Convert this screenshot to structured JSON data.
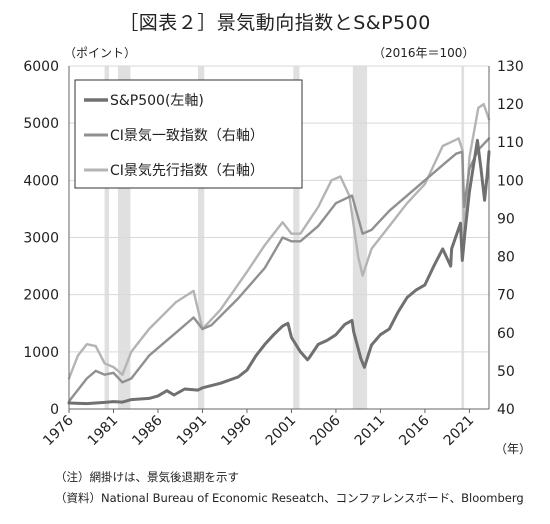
{
  "chart_data": {
    "type": "line",
    "title": "［図表２］景気動向指数とS&P500",
    "left_unit": "（ポイント）",
    "right_unit": "（2016年＝100）",
    "xlabel_unit": "（年）",
    "x_ticks": [
      "1976",
      "1981",
      "1986",
      "1991",
      "1996",
      "2001",
      "2006",
      "2011",
      "2016",
      "2021"
    ],
    "y_left": {
      "min": 0,
      "max": 6000,
      "ticks": [
        "0",
        "1000",
        "2000",
        "3000",
        "4000",
        "5000",
        "6000"
      ]
    },
    "y_right": {
      "min": 40,
      "max": 130,
      "ticks": [
        "40",
        "50",
        "60",
        "70",
        "80",
        "90",
        "100",
        "110",
        "120",
        "130"
      ]
    },
    "x_range": [
      1976,
      2023.2
    ],
    "recessions": [
      [
        1980.0,
        1980.5
      ],
      [
        1981.5,
        1982.9
      ],
      [
        1990.5,
        1991.2
      ],
      [
        2001.2,
        2001.9
      ],
      [
        2007.9,
        2009.5
      ],
      [
        2020.1,
        2020.4
      ]
    ],
    "legend": {
      "position": "top-left"
    },
    "series": [
      {
        "name": "S&P500(左軸)",
        "axis": "left",
        "color": "#707070",
        "width": 3,
        "points": [
          [
            1976,
            105
          ],
          [
            1978,
            95
          ],
          [
            1980,
            115
          ],
          [
            1981,
            130
          ],
          [
            1982,
            120
          ],
          [
            1983,
            165
          ],
          [
            1985,
            185
          ],
          [
            1986,
            230
          ],
          [
            1987,
            320
          ],
          [
            1987.8,
            245
          ],
          [
            1989,
            350
          ],
          [
            1990.5,
            330
          ],
          [
            1991,
            370
          ],
          [
            1993,
            450
          ],
          [
            1995,
            560
          ],
          [
            1996,
            680
          ],
          [
            1997,
            930
          ],
          [
            1998,
            1130
          ],
          [
            1999,
            1300
          ],
          [
            2000,
            1450
          ],
          [
            2000.6,
            1500
          ],
          [
            2001,
            1250
          ],
          [
            2002,
            1000
          ],
          [
            2002.8,
            860
          ],
          [
            2003,
            900
          ],
          [
            2004,
            1130
          ],
          [
            2005,
            1200
          ],
          [
            2006,
            1300
          ],
          [
            2007,
            1480
          ],
          [
            2007.8,
            1550
          ],
          [
            2008,
            1350
          ],
          [
            2008.8,
            880
          ],
          [
            2009.2,
            730
          ],
          [
            2010,
            1120
          ],
          [
            2011,
            1300
          ],
          [
            2012,
            1400
          ],
          [
            2013,
            1700
          ],
          [
            2014,
            1950
          ],
          [
            2015,
            2080
          ],
          [
            2016,
            2170
          ],
          [
            2017,
            2500
          ],
          [
            2018,
            2800
          ],
          [
            2018.9,
            2500
          ],
          [
            2019,
            2800
          ],
          [
            2020,
            3250
          ],
          [
            2020.2,
            2600
          ],
          [
            2020.5,
            3100
          ],
          [
            2021,
            3800
          ],
          [
            2021.9,
            4700
          ],
          [
            2022.3,
            4200
          ],
          [
            2022.7,
            3650
          ],
          [
            2023,
            4100
          ],
          [
            2023.2,
            4500
          ]
        ]
      },
      {
        "name": "CI景気一致指数（右軸）",
        "axis": "right",
        "color": "#909090",
        "width": 2.4,
        "points": [
          [
            1976,
            42
          ],
          [
            1978,
            48
          ],
          [
            1979,
            50
          ],
          [
            1980,
            49
          ],
          [
            1981,
            49.5
          ],
          [
            1982,
            47
          ],
          [
            1983,
            48
          ],
          [
            1985,
            54
          ],
          [
            1988,
            60
          ],
          [
            1990,
            64
          ],
          [
            1991,
            61
          ],
          [
            1992,
            62
          ],
          [
            1995,
            69
          ],
          [
            1998,
            77
          ],
          [
            2000,
            85
          ],
          [
            2001,
            84
          ],
          [
            2002,
            84
          ],
          [
            2004,
            88
          ],
          [
            2006,
            94
          ],
          [
            2007.8,
            96
          ],
          [
            2009,
            86
          ],
          [
            2010,
            87
          ],
          [
            2012,
            92
          ],
          [
            2014,
            96
          ],
          [
            2016,
            100
          ],
          [
            2018,
            104
          ],
          [
            2019.5,
            107
          ],
          [
            2020.2,
            107.5
          ],
          [
            2020.4,
            93
          ],
          [
            2021,
            103
          ],
          [
            2022,
            108
          ],
          [
            2023.2,
            111
          ]
        ]
      },
      {
        "name": "CI景気先行指数（右軸）",
        "axis": "right",
        "color": "#b4b4b4",
        "width": 2.4,
        "points": [
          [
            1976,
            48
          ],
          [
            1977,
            54
          ],
          [
            1978,
            57
          ],
          [
            1979,
            56.5
          ],
          [
            1980,
            52
          ],
          [
            1981,
            51
          ],
          [
            1982,
            49
          ],
          [
            1983,
            55
          ],
          [
            1985,
            61
          ],
          [
            1988,
            68
          ],
          [
            1990,
            71
          ],
          [
            1991,
            61
          ],
          [
            1993,
            66
          ],
          [
            1996,
            76
          ],
          [
            1998,
            83
          ],
          [
            2000,
            89
          ],
          [
            2001,
            86
          ],
          [
            2002,
            86
          ],
          [
            2004,
            93
          ],
          [
            2005.5,
            100
          ],
          [
            2006.5,
            101
          ],
          [
            2007.5,
            96
          ],
          [
            2008.5,
            80
          ],
          [
            2009,
            75
          ],
          [
            2010,
            82
          ],
          [
            2012,
            88
          ],
          [
            2014,
            94
          ],
          [
            2016,
            99
          ],
          [
            2018,
            109
          ],
          [
            2019.8,
            111
          ],
          [
            2020.2,
            108
          ],
          [
            2020.4,
            84
          ],
          [
            2021,
            106
          ],
          [
            2022,
            119
          ],
          [
            2022.6,
            120
          ],
          [
            2023.2,
            116
          ]
        ]
      }
    ],
    "notes": [
      "（注）網掛けは、景気後退期を示す",
      "（資料）National Bureau of Economic Reseatch、コンファレンスボード、Bloomberg"
    ]
  }
}
